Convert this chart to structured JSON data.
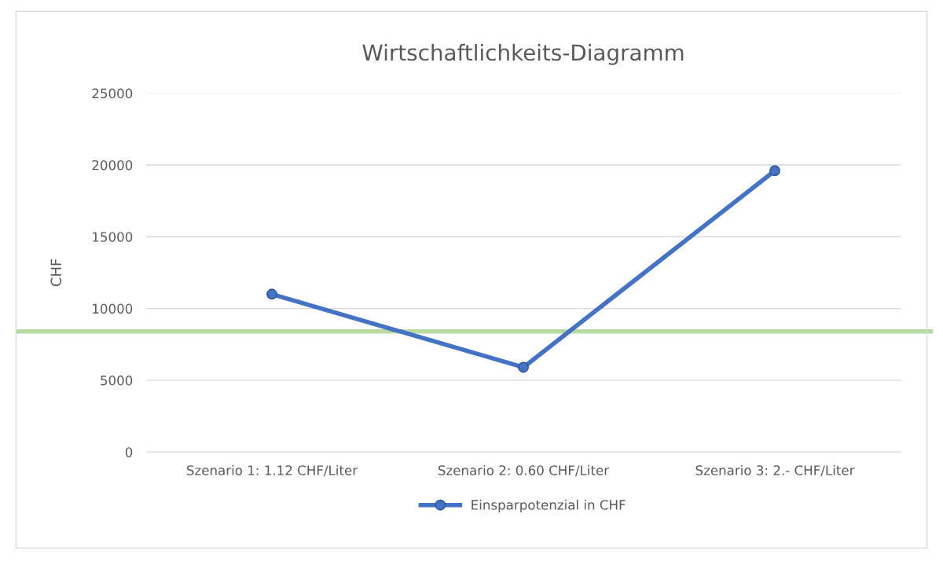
{
  "chart_data": {
    "type": "line",
    "title": "Wirtschaftlichkeits-Diagramm",
    "ylabel": "CHF",
    "categories": [
      "Szenario 1: 1.12 CHF/Liter",
      "Szenario 2: 0.60 CHF/Liter",
      "Szenario 3: 2.- CHF/Liter"
    ],
    "series": [
      {
        "name": "Einsparpotenzial in CHF",
        "color": "#4472c4",
        "values": [
          11000,
          5900,
          19600
        ]
      }
    ],
    "ylim": [
      0,
      25000
    ],
    "yticks": [
      0,
      5000,
      10000,
      15000,
      20000,
      25000
    ],
    "ref_lines": [
      {
        "axis": "y",
        "value": 8400,
        "color": "#b7dba0"
      }
    ],
    "grid": "y",
    "legend": "bottom",
    "marker": "circle",
    "line_style": "solid"
  }
}
